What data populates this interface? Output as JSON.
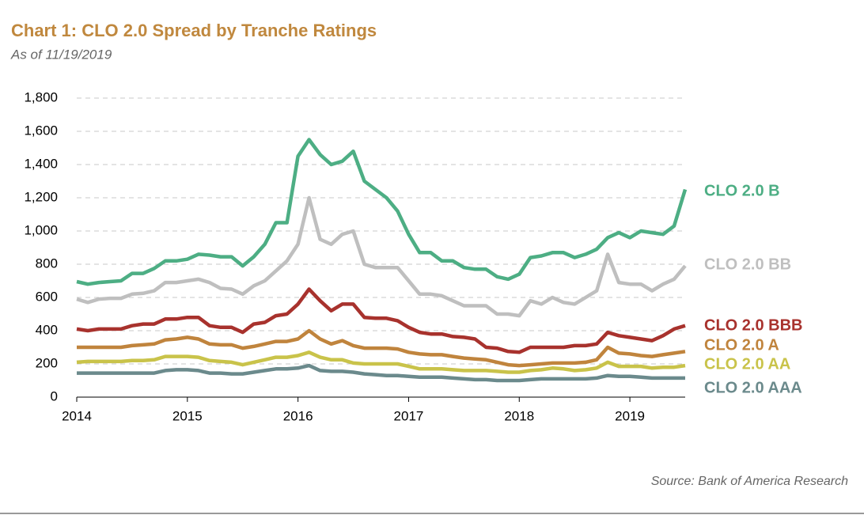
{
  "chart_data": {
    "type": "line",
    "title": "Chart 1: CLO 2.0 Spread by Tranche Ratings",
    "subtitle": "As of 11/19/2019",
    "source": "Source: Bank of America Research",
    "x": [
      2014.0,
      2014.1,
      2014.2,
      2014.3,
      2014.4,
      2014.5,
      2014.6,
      2014.7,
      2014.8,
      2014.9,
      2015.0,
      2015.1,
      2015.2,
      2015.3,
      2015.4,
      2015.5,
      2015.6,
      2015.7,
      2015.8,
      2015.9,
      2016.0,
      2016.1,
      2016.2,
      2016.3,
      2016.4,
      2016.5,
      2016.6,
      2016.7,
      2016.8,
      2016.9,
      2017.0,
      2017.1,
      2017.2,
      2017.3,
      2017.4,
      2017.5,
      2017.6,
      2017.7,
      2017.8,
      2017.9,
      2018.0,
      2018.1,
      2018.2,
      2018.3,
      2018.4,
      2018.5,
      2018.6,
      2018.7,
      2018.8,
      2018.9,
      2019.0,
      2019.1,
      2019.2,
      2019.3,
      2019.4,
      2019.5
    ],
    "series": [
      {
        "name": "CLO 2.0 B",
        "color": "#4dae84",
        "values": [
          695,
          680,
          690,
          695,
          700,
          745,
          745,
          775,
          820,
          820,
          830,
          860,
          855,
          845,
          845,
          790,
          845,
          920,
          1050,
          1050,
          1450,
          1550,
          1460,
          1400,
          1420,
          1480,
          1300,
          1250,
          1200,
          1120,
          980,
          870,
          870,
          820,
          820,
          780,
          770,
          770,
          725,
          710,
          740,
          840,
          850,
          870,
          870,
          840,
          860,
          890,
          960,
          990,
          960,
          1000,
          990,
          980,
          1030,
          1250
        ]
      },
      {
        "name": "CLO 2.0 BB",
        "color": "#bfbfbf",
        "values": [
          590,
          570,
          590,
          595,
          595,
          620,
          625,
          640,
          690,
          690,
          700,
          710,
          690,
          655,
          650,
          620,
          670,
          700,
          760,
          820,
          920,
          1200,
          950,
          920,
          980,
          1000,
          800,
          780,
          780,
          780,
          700,
          620,
          620,
          610,
          580,
          550,
          550,
          550,
          500,
          500,
          490,
          580,
          560,
          600,
          570,
          560,
          600,
          640,
          860,
          690,
          680,
          680,
          640,
          680,
          710,
          790
        ]
      },
      {
        "name": "CLO 2.0 BBB",
        "color": "#a8322d",
        "values": [
          410,
          400,
          410,
          410,
          410,
          430,
          440,
          440,
          470,
          470,
          480,
          480,
          430,
          420,
          420,
          390,
          440,
          450,
          490,
          500,
          560,
          650,
          580,
          520,
          560,
          560,
          480,
          475,
          475,
          460,
          420,
          390,
          380,
          380,
          365,
          360,
          350,
          300,
          295,
          275,
          270,
          300,
          300,
          300,
          300,
          310,
          310,
          320,
          390,
          370,
          360,
          350,
          340,
          370,
          410,
          430
        ]
      },
      {
        "name": "CLO 2.0 A",
        "color": "#c0843d",
        "values": [
          300,
          300,
          300,
          300,
          300,
          310,
          315,
          320,
          345,
          350,
          360,
          350,
          320,
          315,
          315,
          295,
          305,
          320,
          335,
          335,
          350,
          400,
          350,
          320,
          340,
          310,
          295,
          295,
          295,
          290,
          270,
          260,
          255,
          255,
          245,
          235,
          230,
          225,
          210,
          195,
          190,
          195,
          200,
          205,
          205,
          205,
          210,
          225,
          300,
          265,
          260,
          250,
          245,
          255,
          265,
          275
        ]
      },
      {
        "name": "CLO 2.0 AA",
        "color": "#c9c34a",
        "values": [
          210,
          215,
          215,
          215,
          215,
          220,
          220,
          225,
          245,
          245,
          245,
          240,
          220,
          215,
          210,
          195,
          210,
          225,
          240,
          240,
          250,
          270,
          240,
          225,
          225,
          205,
          200,
          200,
          200,
          200,
          185,
          170,
          170,
          170,
          165,
          160,
          160,
          160,
          155,
          150,
          150,
          160,
          165,
          175,
          170,
          160,
          165,
          175,
          210,
          185,
          185,
          185,
          175,
          180,
          180,
          190
        ]
      },
      {
        "name": "CLO 2.0 AAA",
        "color": "#6b8a8c",
        "values": [
          145,
          145,
          145,
          145,
          145,
          145,
          145,
          145,
          160,
          165,
          165,
          160,
          145,
          145,
          140,
          140,
          150,
          160,
          170,
          170,
          175,
          190,
          160,
          155,
          155,
          150,
          140,
          135,
          130,
          130,
          125,
          120,
          120,
          120,
          115,
          110,
          105,
          105,
          100,
          100,
          100,
          105,
          110,
          110,
          110,
          110,
          110,
          115,
          130,
          125,
          125,
          120,
          115,
          115,
          115,
          115
        ]
      }
    ],
    "xlim": [
      2014,
      2019.5
    ],
    "xticks": [
      2014,
      2015,
      2016,
      2017,
      2018,
      2019
    ],
    "ylim": [
      0,
      1800
    ],
    "yticks": [
      0,
      200,
      400,
      600,
      800,
      {
        "value": 1000,
        "label": "1,000"
      },
      {
        "value": 1200,
        "label": "1,200"
      },
      {
        "value": 1400,
        "label": "1,400"
      },
      {
        "value": 1600,
        "label": "1,600"
      },
      {
        "value": 1800,
        "label": "1,800"
      }
    ],
    "grid": true
  }
}
